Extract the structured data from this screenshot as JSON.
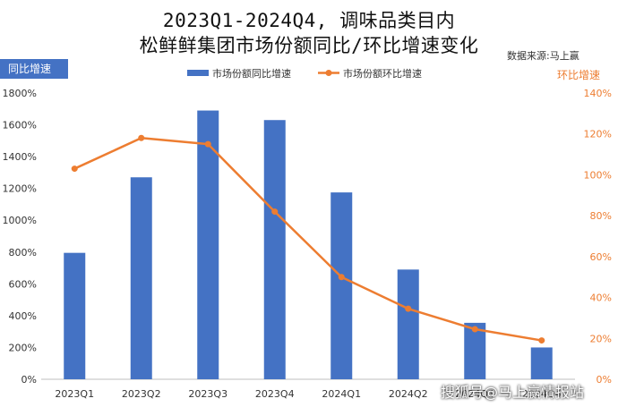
{
  "title_line1": "2023Q1-2024Q4, 调味品类目内",
  "title_line2": "松鲜鲜集团市场份额同比/环比增速变化",
  "source": "数据来源:马上赢",
  "left_axis_badge": "同比增速",
  "right_axis_badge": "环比增速",
  "watermark": "搜狐号@马上赢情报站",
  "colors": {
    "bar": "#4472c4",
    "line": "#ed7d31",
    "badge_bg": "#4472c4"
  },
  "chart_data": {
    "type": "bar",
    "categories": [
      "2023Q1",
      "2023Q2",
      "2023Q3",
      "2023Q4",
      "2024Q1",
      "2024Q2",
      "2024Q3",
      "2024Q4"
    ],
    "series": [
      {
        "name": "市场份额同比增速",
        "type": "bar",
        "axis": "left",
        "values": [
          795,
          1270,
          1690,
          1630,
          1175,
          690,
          355,
          200
        ]
      },
      {
        "name": "市场份额环比增速",
        "type": "line",
        "axis": "right",
        "values": [
          103,
          118,
          115,
          82,
          50,
          34.5,
          24.5,
          19
        ]
      }
    ],
    "y_left": {
      "lim": [
        0,
        1800
      ],
      "ticks": [
        0,
        200,
        400,
        600,
        800,
        1000,
        1200,
        1400,
        1600,
        1800
      ],
      "tick_labels": [
        "0%",
        "200%",
        "400%",
        "600%",
        "800%",
        "1000%",
        "1200%",
        "1400%",
        "1600%",
        "1800%"
      ]
    },
    "y_right": {
      "lim": [
        0,
        140
      ],
      "ticks": [
        0,
        20,
        40,
        60,
        80,
        100,
        120,
        140
      ],
      "tick_labels": [
        "0%",
        "20%",
        "40%",
        "60%",
        "80%",
        "100%",
        "120%",
        "140%"
      ]
    },
    "legend_position": "top-center",
    "grid": false
  }
}
